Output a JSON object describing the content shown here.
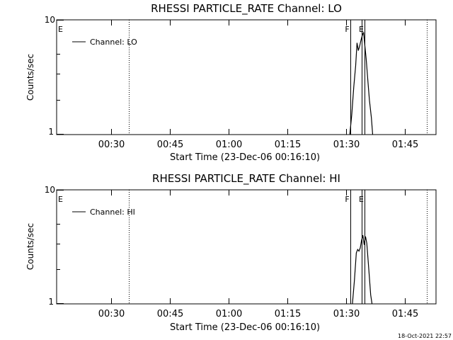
{
  "chart_data": [
    {
      "type": "line",
      "title": "RHESSI PARTICLE_RATE Channel: LO",
      "xlabel": "Start Time (23-Dec-06 00:16:10)",
      "ylabel": "Counts/sec",
      "yscale": "log",
      "ylim": [
        1,
        10
      ],
      "y_tick_labels": [
        "1",
        "10"
      ],
      "xlim": [
        "00:16:10",
        "01:53:00"
      ],
      "x_ticks": [
        "00:30",
        "00:45",
        "01:00",
        "01:15",
        "01:30",
        "01:45"
      ],
      "legend": {
        "label": "Channel: LO",
        "placement": "top-left"
      },
      "markers": [
        {
          "label": "E",
          "x": "00:16:10",
          "style": "none"
        },
        {
          "label": "",
          "x": "00:34:40",
          "style": "dotted"
        },
        {
          "label": "F",
          "x": "01:31:10",
          "style": "solid"
        },
        {
          "label": "",
          "x": "01:34:00",
          "style": "solid"
        },
        {
          "label": "E",
          "x": "01:34:40",
          "style": "solid"
        },
        {
          "label": "",
          "x": "01:50:40",
          "style": "dotted"
        }
      ],
      "series": [
        {
          "name": "Channel: LO",
          "x": [
            "01:31:00",
            "01:31:30",
            "01:32:00",
            "01:32:30",
            "01:32:50",
            "01:33:10",
            "01:33:30",
            "01:33:50",
            "01:34:10",
            "01:34:30",
            "01:34:50",
            "01:35:10",
            "01:35:30",
            "01:36:00",
            "01:36:30",
            "01:36:50"
          ],
          "y": [
            1,
            1.5,
            2.6,
            4.0,
            6.3,
            5.4,
            5.9,
            6.6,
            7.3,
            7.8,
            6.0,
            4.6,
            3.3,
            2.0,
            1.4,
            1
          ]
        }
      ]
    },
    {
      "type": "line",
      "title": "RHESSI PARTICLE_RATE Channel: HI",
      "xlabel": "Start Time (23-Dec-06 00:16:10)",
      "ylabel": "Counts/sec",
      "yscale": "log",
      "ylim": [
        1,
        10
      ],
      "y_tick_labels": [
        "1",
        "10"
      ],
      "xlim": [
        "00:16:10",
        "01:53:00"
      ],
      "x_ticks": [
        "00:30",
        "00:45",
        "01:00",
        "01:15",
        "01:30",
        "01:45"
      ],
      "legend": {
        "label": "Channel: HI",
        "placement": "top-left"
      },
      "markers": [
        {
          "label": "E",
          "x": "00:16:10",
          "style": "none"
        },
        {
          "label": "",
          "x": "00:34:40",
          "style": "dotted"
        },
        {
          "label": "F",
          "x": "01:31:10",
          "style": "solid"
        },
        {
          "label": "",
          "x": "01:34:00",
          "style": "solid"
        },
        {
          "label": "E",
          "x": "01:34:40",
          "style": "solid"
        },
        {
          "label": "",
          "x": "01:50:40",
          "style": "dotted"
        }
      ],
      "series": [
        {
          "name": "Channel: HI",
          "x": [
            "01:31:40",
            "01:32:10",
            "01:32:40",
            "01:33:00",
            "01:33:20",
            "01:33:40",
            "01:34:00",
            "01:34:20",
            "01:34:40",
            "01:35:00",
            "01:35:20",
            "01:35:40",
            "01:36:00",
            "01:36:20",
            "01:36:40"
          ],
          "y": [
            1,
            1.6,
            2.8,
            3.0,
            2.9,
            3.1,
            3.6,
            4.0,
            3.3,
            3.9,
            3.4,
            2.4,
            1.7,
            1.2,
            1
          ]
        }
      ]
    }
  ],
  "footer": {
    "timestamp": "18-Oct-2021 22:57"
  }
}
